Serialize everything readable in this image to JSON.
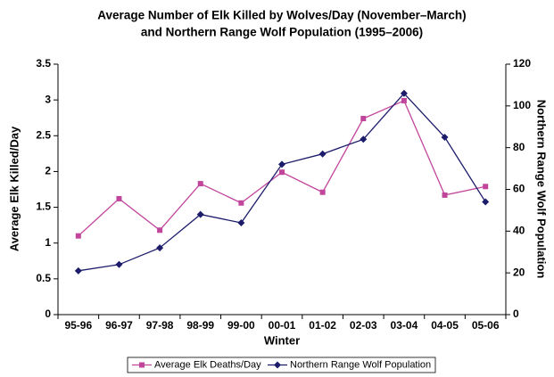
{
  "chart_data": {
    "type": "line",
    "title": [
      "Average Number of Elk Killed by Wolves/Day (November–March)",
      "and Northern Range Wolf Population (1995–2006)"
    ],
    "x_label": "Winter",
    "y_label": "Average Elk Killed/Day",
    "y2_label": "Northern Range Wolf Population",
    "categories": [
      "95-96",
      "96-97",
      "97-98",
      "98-99",
      "99-00",
      "00-01",
      "01-02",
      "02-03",
      "03-04",
      "04-05",
      "05-06"
    ],
    "series": [
      {
        "name": "Average Elk Deaths/Day",
        "color": "#c2459c",
        "marker": "square",
        "axis": "y",
        "values": [
          1.1,
          1.62,
          1.18,
          1.83,
          1.56,
          1.99,
          1.71,
          2.74,
          2.99,
          1.67,
          1.79
        ]
      },
      {
        "name": "Northern Range Wolf Population",
        "color": "#1c1c6b",
        "marker": "diamond",
        "axis": "y2",
        "values": [
          21,
          24,
          32,
          48,
          44,
          72,
          77,
          84,
          106,
          85,
          54
        ]
      }
    ],
    "ylim": [
      0,
      3.5
    ],
    "yticks": [
      0,
      0.5,
      1,
      1.5,
      2,
      2.5,
      3,
      3.5
    ],
    "y2lim": [
      0,
      120
    ],
    "y2ticks": [
      0,
      20,
      40,
      60,
      80,
      100,
      120
    ],
    "legend": "bottom"
  }
}
